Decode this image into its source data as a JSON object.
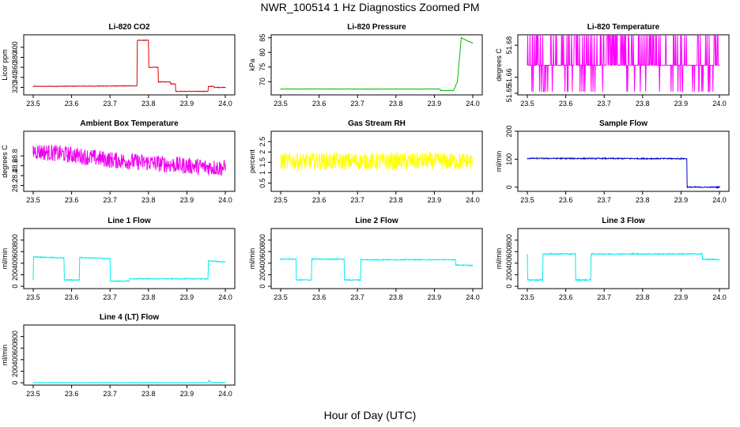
{
  "figure": {
    "title": "NWR_100514  1 Hz Diagnostics Zoomed PM",
    "xlabel": "Hour of Day (UTC)"
  },
  "chart_data": [
    {
      "type": "line",
      "title": "Li-820 CO2",
      "ylabel": "Licor ppm",
      "color": "#dd0000",
      "xlim": [
        23.5,
        24.0
      ],
      "ylim": [
        305,
        425
      ],
      "xticks": [
        23.5,
        23.6,
        23.7,
        23.8,
        23.9,
        24.0
      ],
      "yticks": [
        320,
        340,
        360,
        380,
        400
      ],
      "x": [
        23.5,
        23.77,
        23.771,
        23.79,
        23.8,
        23.801,
        23.825,
        23.826,
        23.857,
        23.858,
        23.87,
        23.871,
        23.955,
        23.956,
        23.97,
        23.971,
        24.0
      ],
      "y": [
        322,
        323,
        414,
        414,
        414,
        360,
        360,
        331,
        331,
        327,
        327,
        312,
        312,
        322,
        322,
        320,
        320
      ],
      "noise": 0.6
    },
    {
      "type": "line",
      "title": "Li-820 Pressure",
      "ylabel": "kPa",
      "color": "#00bb00",
      "xlim": [
        23.5,
        24.0
      ],
      "ylim": [
        65.5,
        86
      ],
      "xticks": [
        23.5,
        23.6,
        23.7,
        23.8,
        23.9,
        24.0
      ],
      "yticks": [
        70,
        75,
        80,
        85
      ],
      "x": [
        23.5,
        23.915,
        23.916,
        23.95,
        23.96,
        23.97,
        23.985,
        24.0
      ],
      "y": [
        67.5,
        67.5,
        67.0,
        67.0,
        70,
        85,
        84,
        83.2
      ],
      "noise": 0.05
    },
    {
      "type": "line",
      "title": "Li-820 Temperature",
      "ylabel": "degrees C",
      "color": "#ff00ff",
      "xlim": [
        23.5,
        24.0
      ],
      "ylim": [
        51.649,
        51.6865
      ],
      "xticks": [
        23.5,
        23.6,
        23.7,
        23.8,
        23.9,
        24.0
      ],
      "yticks": [
        51.65,
        51.66,
        51.68
      ],
      "x": [
        23.5,
        24.0
      ],
      "y": [
        51.66,
        51.66
      ],
      "levels": [
        51.651,
        51.6675,
        51.6865
      ],
      "noise": 0
    },
    {
      "type": "line",
      "title": "Ambient Box Temperature",
      "ylabel": "degrees C",
      "color": "#ee00ee",
      "xlim": [
        23.5,
        24.0
      ],
      "ylim": [
        28.08,
        29.3
      ],
      "xticks": [
        23.5,
        23.6,
        23.7,
        23.8,
        23.9,
        24.0
      ],
      "yticks": [
        28.2,
        28.4,
        28.6,
        28.8
      ],
      "x": [
        23.5,
        23.6,
        23.7,
        23.8,
        23.9,
        24.0
      ],
      "y": [
        28.9,
        28.82,
        28.72,
        28.66,
        28.6,
        28.55
      ],
      "noise": 0.17
    },
    {
      "type": "line",
      "title": "Gas Stream RH",
      "ylabel": "percent",
      "color": "#ffff00",
      "xlim": [
        23.5,
        24.0
      ],
      "ylim": [
        0.1,
        3.0
      ],
      "xticks": [
        23.5,
        23.6,
        23.7,
        23.8,
        23.9,
        24.0
      ],
      "yticks": [
        0.5,
        1.0,
        1.5,
        2.0,
        2.5
      ],
      "x": [
        23.5,
        24.0
      ],
      "y": [
        1.55,
        1.55
      ],
      "noise": 0.42
    },
    {
      "type": "line",
      "title": "Sample Flow",
      "ylabel": "ml/min",
      "color": "#0000cc",
      "xlim": [
        23.5,
        24.0
      ],
      "ylim": [
        -15,
        200
      ],
      "xticks": [
        23.5,
        23.6,
        23.7,
        23.8,
        23.9,
        24.0
      ],
      "yticks": [
        0,
        100,
        200
      ],
      "x": [
        23.5,
        23.915,
        23.916,
        24.0
      ],
      "y": [
        103,
        102,
        0,
        0
      ],
      "noise": 2
    },
    {
      "type": "line",
      "title": "Line 1 Flow",
      "ylabel": "ml/min",
      "color": "#00eeee",
      "xlim": [
        23.5,
        24.0
      ],
      "ylim": [
        -40,
        1000
      ],
      "xticks": [
        23.5,
        23.6,
        23.7,
        23.8,
        23.9,
        24.0
      ],
      "yticks": [
        0,
        200,
        400,
        600,
        800
      ],
      "x": [
        23.5,
        23.501,
        23.58,
        23.581,
        23.62,
        23.621,
        23.7,
        23.701,
        23.75,
        23.751,
        23.955,
        23.956,
        24.0
      ],
      "y": [
        110,
        510,
        490,
        110,
        110,
        500,
        480,
        90,
        90,
        130,
        130,
        440,
        420
      ],
      "noise": 8
    },
    {
      "type": "line",
      "title": "Line 2 Flow",
      "ylabel": "ml/min",
      "color": "#00eeee",
      "xlim": [
        23.5,
        24.0
      ],
      "ylim": [
        -40,
        1000
      ],
      "xticks": [
        23.5,
        23.6,
        23.7,
        23.8,
        23.9,
        24.0
      ],
      "yticks": [
        0,
        200,
        400,
        600,
        800
      ],
      "x": [
        23.5,
        23.54,
        23.541,
        23.58,
        23.581,
        23.665,
        23.666,
        23.708,
        23.709,
        23.955,
        23.956,
        24.0
      ],
      "y": [
        470,
        470,
        110,
        110,
        470,
        470,
        110,
        110,
        460,
        460,
        370,
        360
      ],
      "noise": 8
    },
    {
      "type": "line",
      "title": "Line 3 Flow",
      "ylabel": "ml/min",
      "color": "#00eeee",
      "xlim": [
        23.5,
        24.0
      ],
      "ylim": [
        -40,
        1000
      ],
      "xticks": [
        23.5,
        23.6,
        23.7,
        23.8,
        23.9,
        24.0
      ],
      "yticks": [
        0,
        200,
        400,
        600,
        800
      ],
      "x": [
        23.5,
        23.501,
        23.54,
        23.541,
        23.625,
        23.626,
        23.665,
        23.666,
        23.955,
        23.956,
        24.0
      ],
      "y": [
        550,
        110,
        110,
        560,
        560,
        110,
        110,
        560,
        560,
        470,
        460
      ],
      "noise": 10
    },
    {
      "type": "line",
      "title": "Line 4 (LT) Flow",
      "ylabel": "ml/min",
      "color": "#00eeee",
      "xlim": [
        23.5,
        24.0
      ],
      "ylim": [
        -40,
        1000
      ],
      "xticks": [
        23.5,
        23.6,
        23.7,
        23.8,
        23.9,
        24.0
      ],
      "yticks": [
        0,
        200,
        400,
        600,
        800
      ],
      "x": [
        23.5,
        23.955,
        23.958,
        23.962,
        24.0
      ],
      "y": [
        5,
        5,
        40,
        8,
        5
      ],
      "noise": 1.5
    }
  ]
}
